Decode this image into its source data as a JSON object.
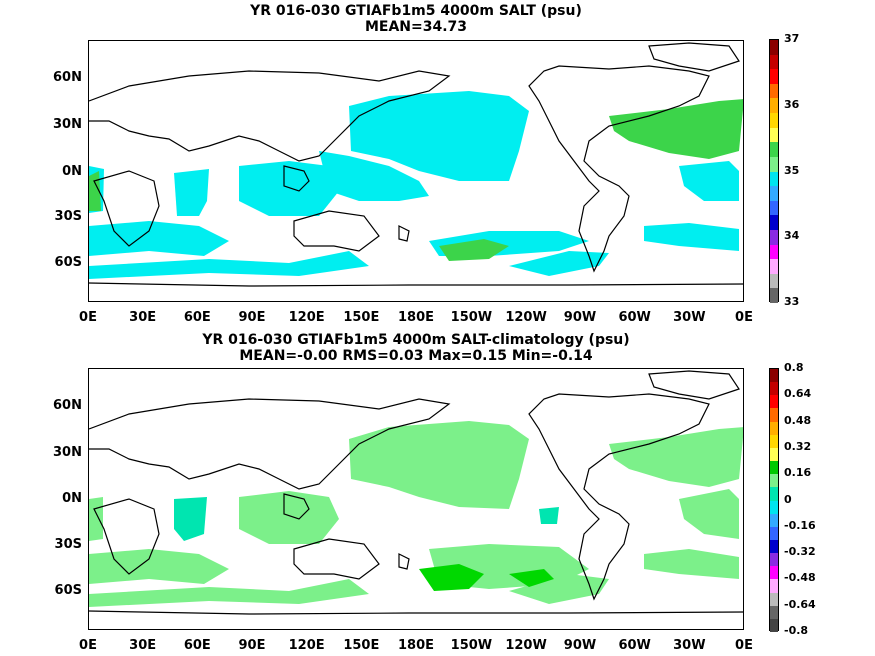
{
  "panel1": {
    "title_line1": "YR 016-030 GTIAFb1m5 4000m SALT (psu)",
    "title_line2": "MEAN=34.73",
    "colorbar_labels": [
      "37",
      "36",
      "35",
      "34",
      "33"
    ],
    "colorbar_colors": [
      "#8b0000",
      "#c40000",
      "#ff0000",
      "#ff6a00",
      "#ffae00",
      "#ffd700",
      "#ffff55",
      "#3cd44a",
      "#7cf08a",
      "#00e5ee",
      "#33aaff",
      "#3366ff",
      "#0000cc",
      "#8a2be2",
      "#ff00ff",
      "#ffaaff",
      "#bbbbbb",
      "#666666"
    ]
  },
  "panel2": {
    "title_line1": "YR 016-030 GTIAFb1m5 4000m SALT-climatology (psu)",
    "title_line2": "MEAN=-0.00   RMS=0.03   Max=0.15   Min=-0.14",
    "colorbar_labels": [
      "0.8",
      "0.64",
      "0.48",
      "0.32",
      "0.16",
      "0",
      "-0.16",
      "-0.32",
      "-0.48",
      "-0.64",
      "-0.8"
    ],
    "colorbar_colors": [
      "#8b0000",
      "#c40000",
      "#ff0000",
      "#ff6a00",
      "#ffae00",
      "#ffd700",
      "#ffff55",
      "#00c800",
      "#7cf08a",
      "#00e5b0",
      "#00e5ee",
      "#33aaff",
      "#3366ff",
      "#0000cc",
      "#8a2be2",
      "#ff00ff",
      "#ffaaff",
      "#bbbbbb",
      "#666666",
      "#444444"
    ]
  },
  "lat_labels": [
    "60N",
    "30N",
    "0N",
    "30S",
    "60S"
  ],
  "lon_labels": [
    "0E",
    "30E",
    "60E",
    "90E",
    "120E",
    "150E",
    "180E",
    "150W",
    "120W",
    "90W",
    "60W",
    "30W",
    "0E"
  ]
}
